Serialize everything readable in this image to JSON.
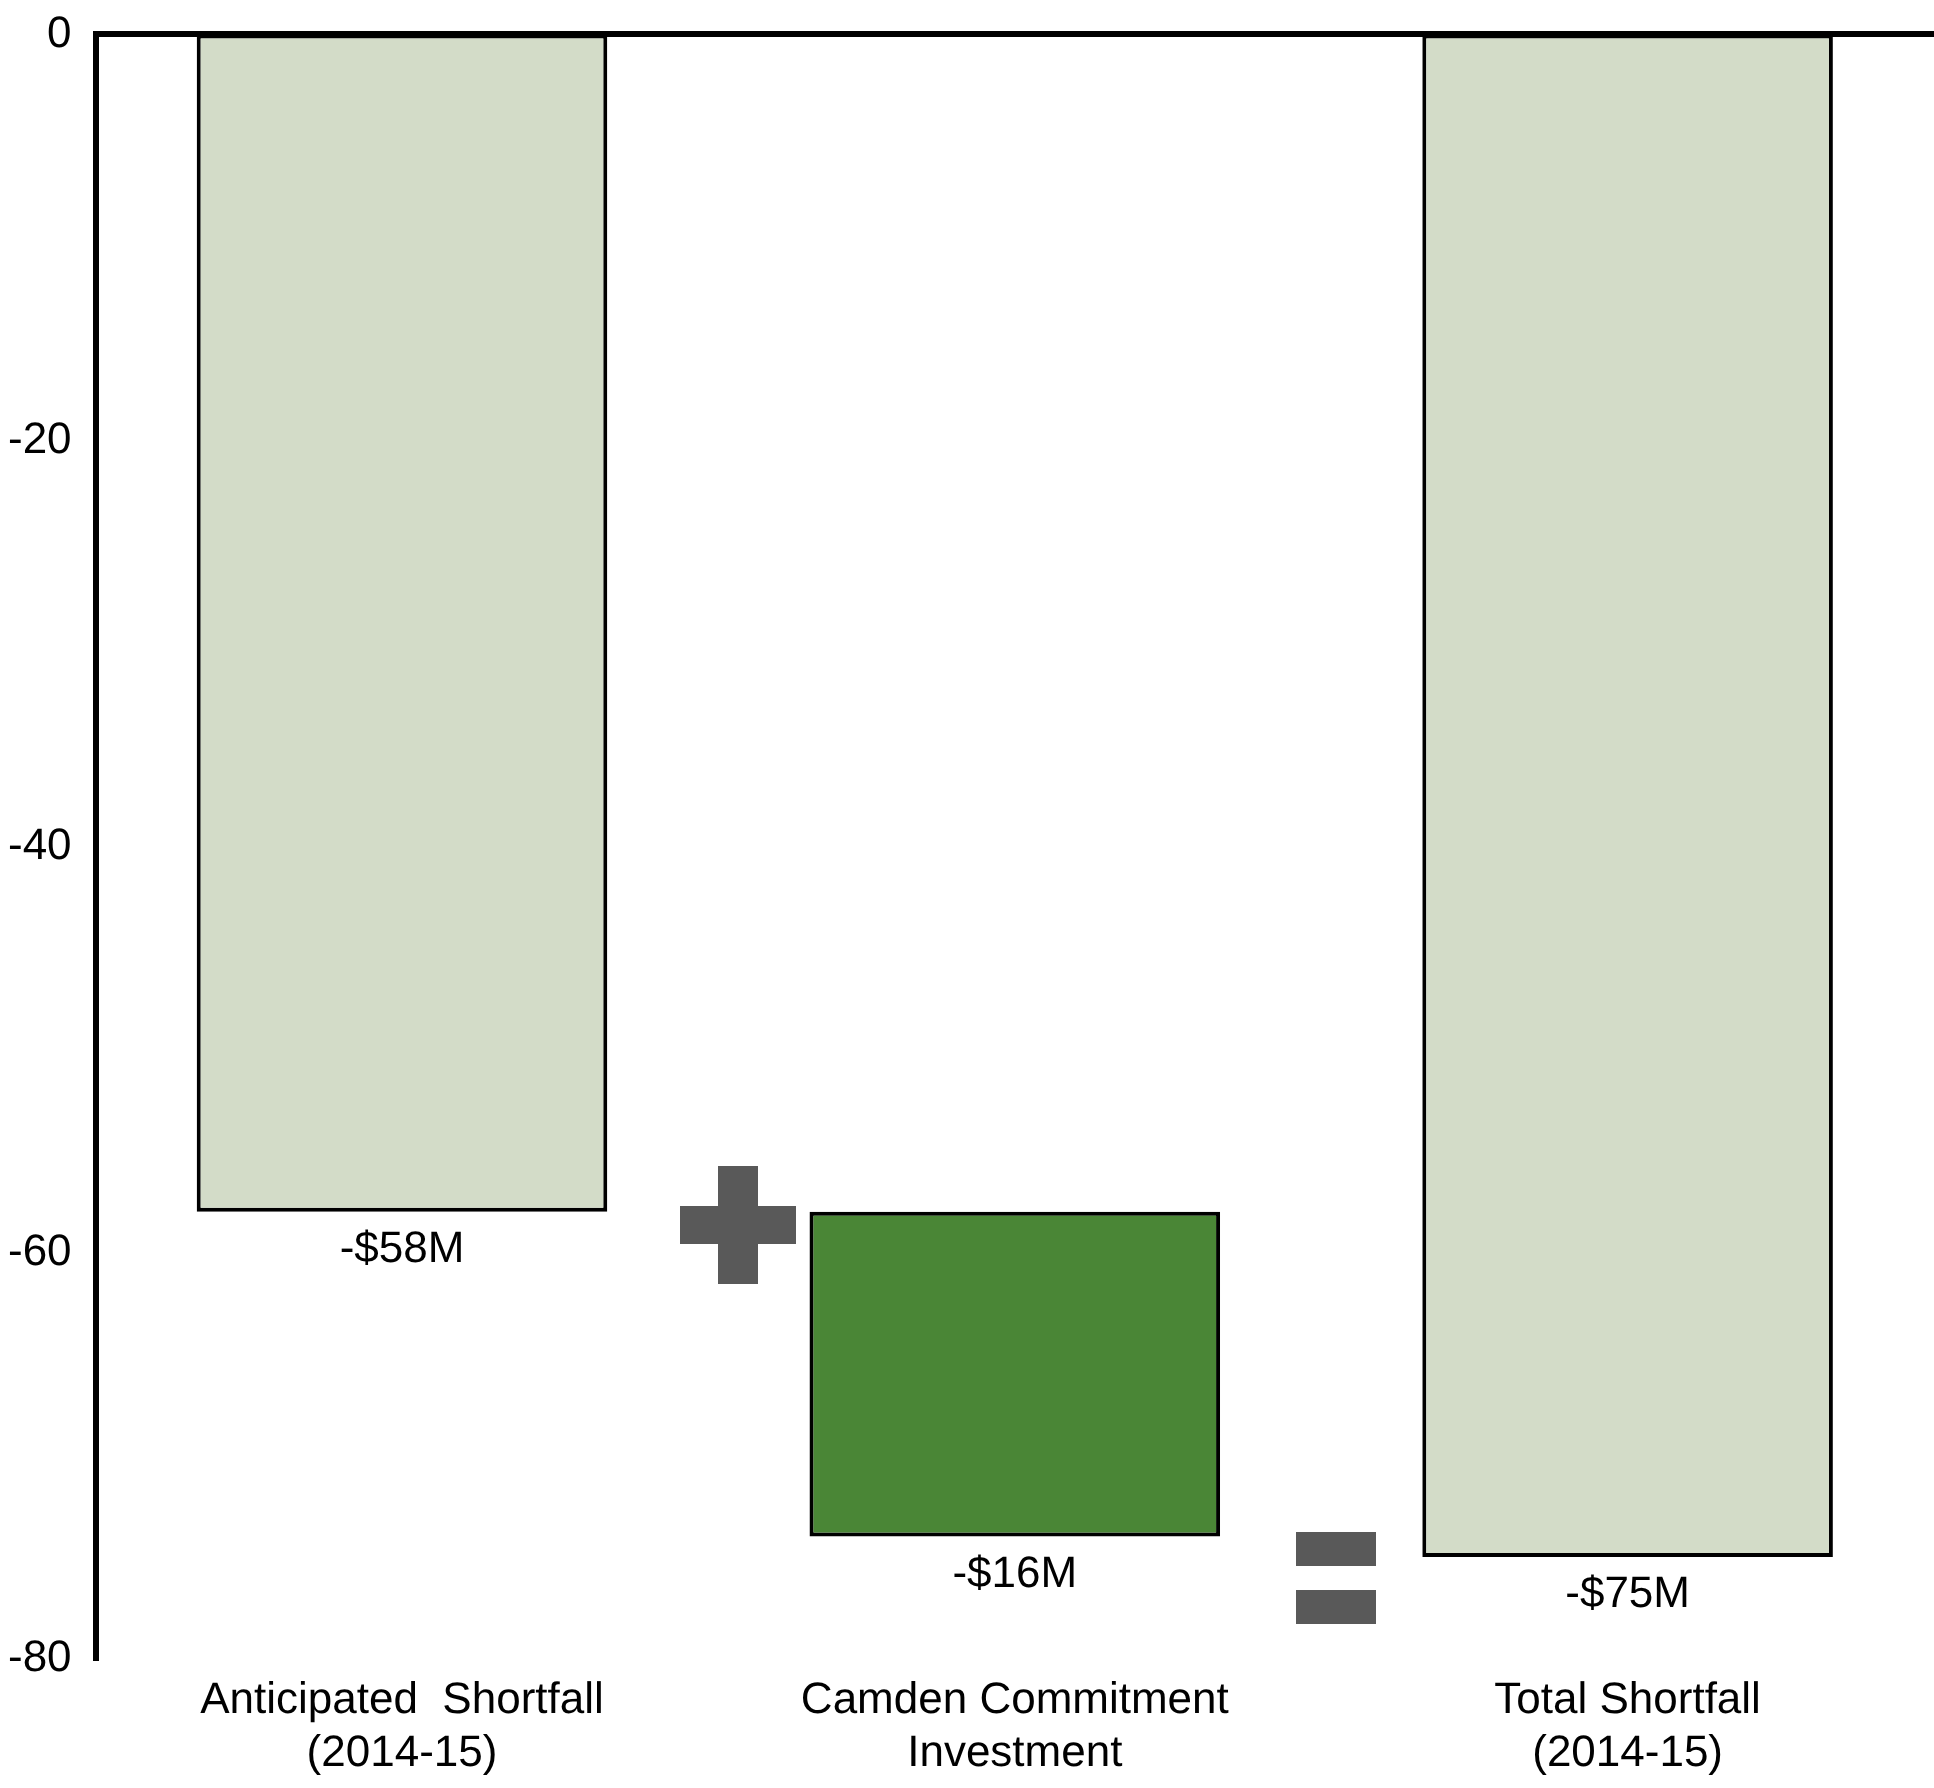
{
  "chart_data": {
    "type": "bar",
    "categories": [
      "Anticipated  Shortfall\n(2014-15)",
      "Camden Commitment\nInvestment",
      "Total Shortfall\n(2014-15)"
    ],
    "values": [
      -58,
      -16,
      -75
    ],
    "base": [
      0,
      -58,
      0
    ],
    "colors": [
      "#d3dcc8",
      "#4a8636",
      "#d3dcc8"
    ],
    "value_labels": [
      "-$58M",
      "-$16M",
      "-$75M"
    ],
    "ylim": [
      -80,
      0
    ],
    "yticks": [
      0,
      -20,
      -40,
      -60,
      -80
    ]
  }
}
